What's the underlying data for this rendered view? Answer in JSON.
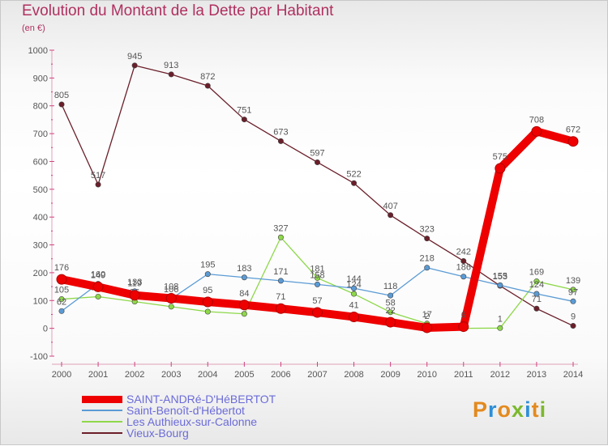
{
  "title": "Evolution du Montant de la Dette par Habitant",
  "subtitle": "(en €)",
  "logo": {
    "text": "Proxiti"
  },
  "chart_data": {
    "type": "line",
    "x": [
      2000,
      2001,
      2002,
      2003,
      2004,
      2005,
      2006,
      2007,
      2008,
      2009,
      2010,
      2011,
      2012,
      2013,
      2014
    ],
    "ylim": [
      -100,
      1000
    ],
    "yticks": [
      -100,
      0,
      100,
      200,
      300,
      400,
      500,
      600,
      700,
      800,
      900,
      1000
    ],
    "grid": false,
    "legend_position": "bottom",
    "series": [
      {
        "name": "Vieux-Bourg",
        "color": "#6b1f2a",
        "values": [
          805,
          517,
          945,
          913,
          872,
          751,
          673,
          597,
          522,
          407,
          323,
          242,
          153,
          71,
          9
        ],
        "labels": [
          "805",
          "517",
          "945",
          "913",
          "872",
          "751",
          "673",
          "597",
          "522",
          "407",
          "323",
          "242",
          "153",
          "71",
          "9"
        ]
      },
      {
        "name": "Les Authieux-sur-Calonne",
        "color": "#8ed84a",
        "values": [
          105,
          114,
          96,
          78,
          60,
          52,
          327,
          181,
          124,
          58,
          17,
          0,
          1,
          169,
          139
        ],
        "labels": [
          "105",
          "114",
          "96",
          "78",
          "60",
          "52",
          "327",
          "181",
          "124",
          "58",
          "17",
          "0",
          "1",
          "169",
          "139"
        ]
      },
      {
        "name": "Saint-Benoît-d'Hébertot",
        "color": "#5b9bd5",
        "values": [
          62,
          160,
          133,
          106,
          195,
          183,
          171,
          158,
          144,
          118,
          218,
          186,
          155,
          124,
          97
        ],
        "labels": [
          "62",
          "160",
          "133",
          "106",
          "195",
          "183",
          "171",
          "158",
          "144",
          "118",
          "218",
          "186",
          "155",
          "124",
          "97"
        ]
      },
      {
        "name": "SAINT-ANDRé-D'HéBERTOT",
        "color": "#ee0000",
        "values": [
          176,
          149,
          119,
          108,
          95,
          84,
          71,
          57,
          41,
          22,
          2,
          6,
          575,
          708,
          672
        ],
        "labels": [
          "176",
          "149",
          "119",
          "108",
          "95",
          "84",
          "71",
          "57",
          "41",
          "22",
          "2",
          "6",
          "575",
          "708",
          "672"
        ]
      }
    ],
    "legend": [
      {
        "label": "SAINT-ANDRé-D'HéBERTOT",
        "color": "#ee0000"
      },
      {
        "label": "Saint-Benoît-d'Hébertot",
        "color": "#5b9bd5"
      },
      {
        "label": "Les Authieux-sur-Calonne",
        "color": "#8ed84a"
      },
      {
        "label": "Vieux-Bourg",
        "color": "#6b1f2a"
      }
    ]
  }
}
